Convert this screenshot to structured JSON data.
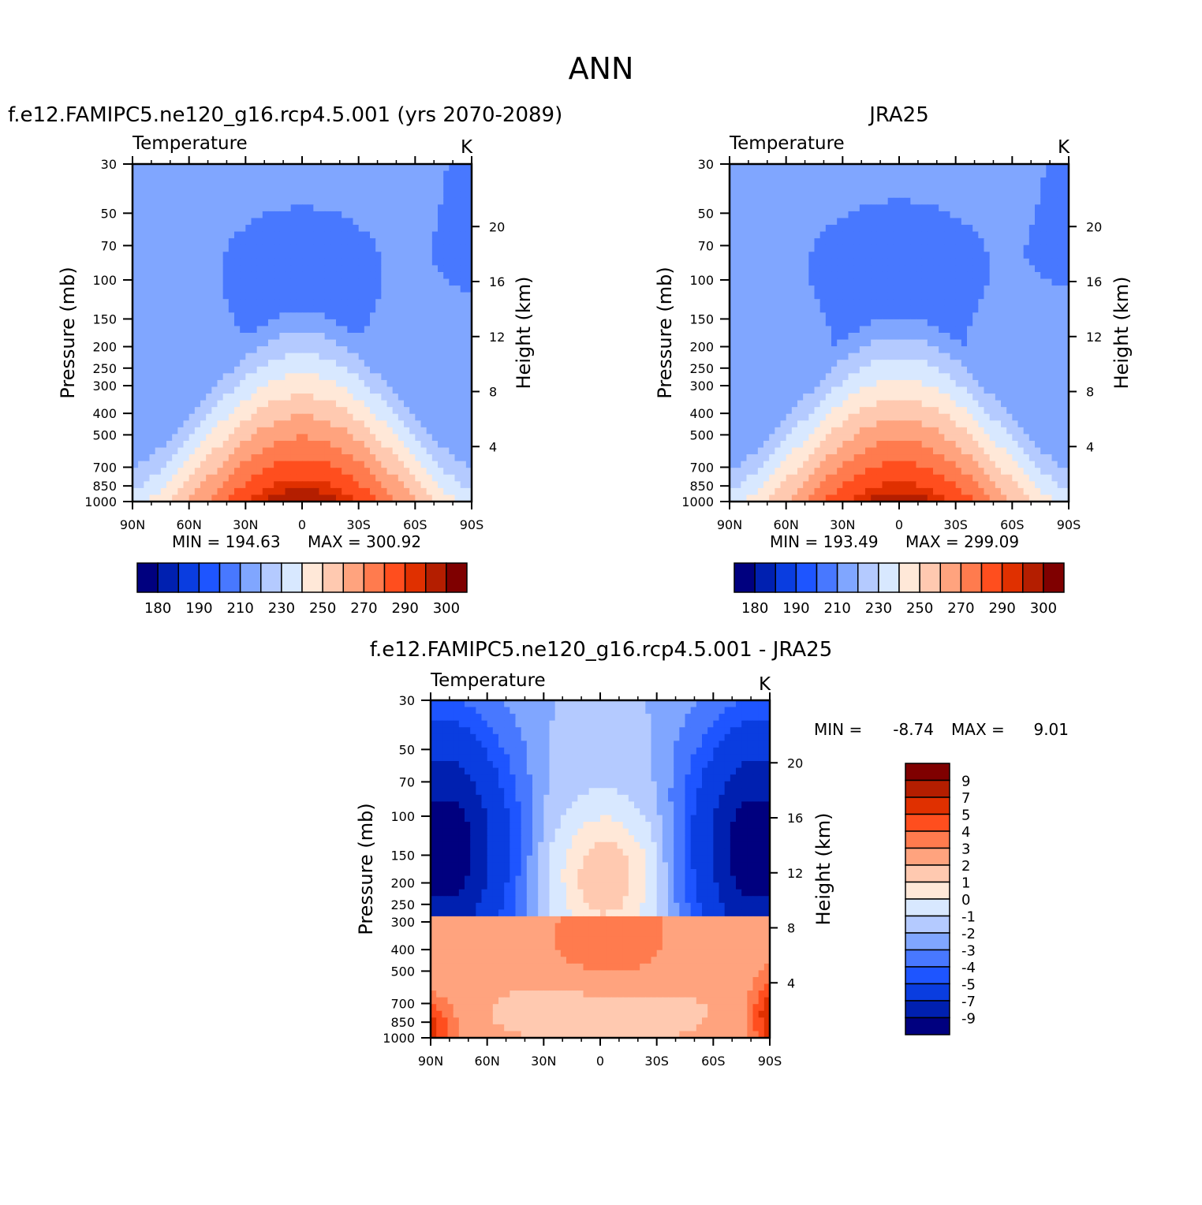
{
  "page_title": "ANN",
  "chart_data": [
    {
      "id": "model",
      "type": "heatmap",
      "title": "f.e12.FAMIPC5.ne120_g16.rcp4.5.001 (yrs 2070-2089)",
      "left_string": "Temperature",
      "right_string": "K",
      "xlabel": "",
      "ylabel": "Pressure (mb)",
      "right_ylabel": "Height (km)",
      "x_ticks": [
        "90N",
        "60N",
        "30N",
        "0",
        "30S",
        "60S",
        "90S"
      ],
      "x_range": [
        90,
        -90
      ],
      "y_ticks": [
        30,
        50,
        70,
        100,
        150,
        200,
        250,
        300,
        400,
        500,
        700,
        850,
        1000
      ],
      "y_range": [
        30,
        1000
      ],
      "y_scale": "log",
      "height_ticks": [
        4,
        8,
        12,
        16,
        20
      ],
      "min_label": "MIN = 194.63",
      "max_label": "MAX = 300.92",
      "min": 194.63,
      "max": 300.92,
      "colorbar_orientation": "horizontal",
      "colorbar_labels": [
        "180",
        "190",
        "210",
        "230",
        "250",
        "270",
        "290",
        "300"
      ],
      "colorbar_levels": [
        180,
        185,
        190,
        200,
        210,
        220,
        230,
        240,
        250,
        260,
        270,
        280,
        290,
        295,
        300
      ],
      "field": "clim",
      "field_params": {
        "strat_min": 204,
        "strat_edge": 216,
        "polar_s_cold": 8,
        "surface_max": 300.9
      }
    },
    {
      "id": "obs",
      "type": "heatmap",
      "title": "JRA25",
      "left_string": "Temperature",
      "right_string": "K",
      "xlabel": "",
      "ylabel": "Pressure (mb)",
      "right_ylabel": "Height (km)",
      "x_ticks": [
        "90N",
        "60N",
        "30N",
        "0",
        "30S",
        "60S",
        "90S"
      ],
      "x_range": [
        90,
        -90
      ],
      "y_ticks": [
        30,
        50,
        70,
        100,
        150,
        200,
        250,
        300,
        400,
        500,
        700,
        850,
        1000
      ],
      "y_range": [
        30,
        1000
      ],
      "y_scale": "log",
      "height_ticks": [
        4,
        8,
        12,
        16,
        20
      ],
      "min_label": "MIN = 193.49",
      "max_label": "MAX = 299.09",
      "min": 193.49,
      "max": 299.09,
      "colorbar_orientation": "horizontal",
      "colorbar_labels": [
        "180",
        "190",
        "210",
        "230",
        "250",
        "270",
        "290",
        "300"
      ],
      "colorbar_levels": [
        180,
        185,
        190,
        200,
        210,
        220,
        230,
        240,
        250,
        260,
        270,
        280,
        290,
        295,
        300
      ],
      "field": "clim",
      "field_params": {
        "strat_min": 202,
        "strat_edge": 214,
        "polar_s_cold": 6,
        "surface_max": 299.1
      }
    },
    {
      "id": "diff",
      "type": "heatmap",
      "title": "f.e12.FAMIPC5.ne120_g16.rcp4.5.001 - JRA25",
      "left_string": "Temperature",
      "right_string": "K",
      "xlabel": "",
      "ylabel": "Pressure (mb)",
      "right_ylabel": "Height (km)",
      "x_ticks": [
        "90N",
        "60N",
        "30N",
        "0",
        "30S",
        "60S",
        "90S"
      ],
      "x_range": [
        90,
        -90
      ],
      "y_ticks": [
        30,
        50,
        70,
        100,
        150,
        200,
        250,
        300,
        400,
        500,
        700,
        850,
        1000
      ],
      "y_range": [
        30,
        1000
      ],
      "y_scale": "log",
      "height_ticks": [
        4,
        8,
        12,
        16,
        20
      ],
      "min_label": "MIN =",
      "min_value": "-8.74",
      "max_label": "MAX =",
      "max_value": "9.01",
      "min": -8.74,
      "max": 9.01,
      "colorbar_orientation": "vertical",
      "colorbar_labels": [
        "9",
        "7",
        "5",
        "4",
        "3",
        "2",
        "1",
        "0",
        "-1",
        "-2",
        "-3",
        "-4",
        "-5",
        "-7",
        "-9"
      ],
      "colorbar_levels": [
        -9,
        -7,
        -5,
        -4,
        -3,
        -2,
        -1,
        0,
        1,
        2,
        3,
        4,
        5,
        7,
        9
      ],
      "field": "diff"
    }
  ],
  "palette": [
    "#00007f",
    "#0020b0",
    "#0a3de0",
    "#1e55ff",
    "#4878ff",
    "#80a6ff",
    "#b4caff",
    "#d8e8ff",
    "#ffe8d8",
    "#ffc9b0",
    "#ffa37e",
    "#ff7b4e",
    "#ff4e1e",
    "#e03000",
    "#b41e00",
    "#7f0000"
  ]
}
